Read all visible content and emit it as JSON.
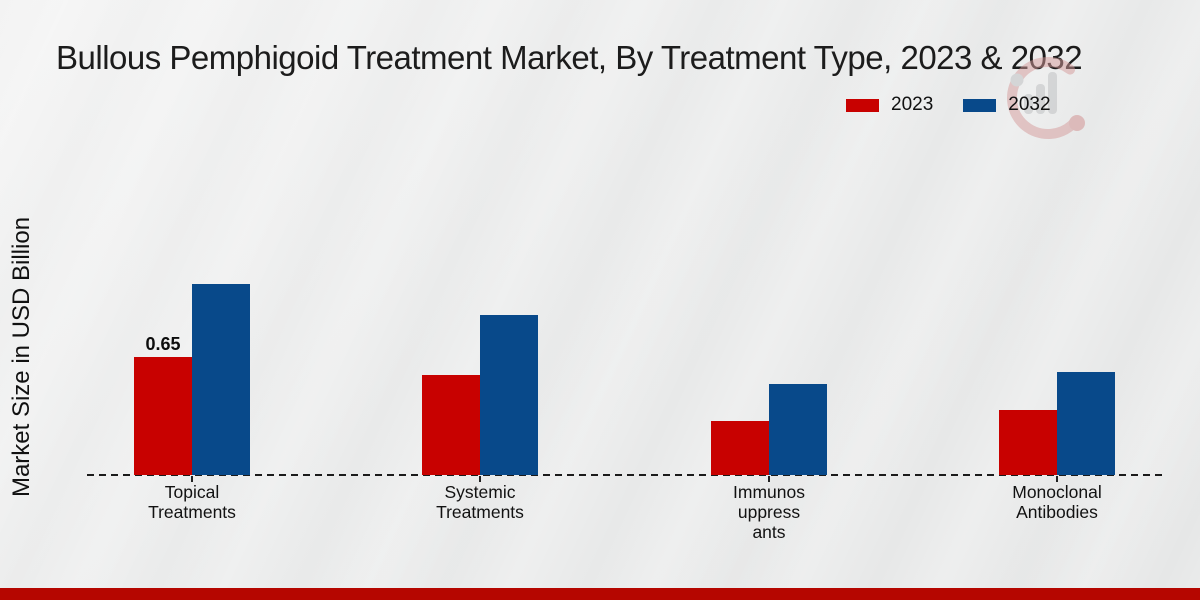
{
  "page": {
    "title": "Bullous Pemphigoid Treatment Market, By Treatment Type, 2023 & 2032"
  },
  "y_axis": {
    "label": "Market Size in USD Billion"
  },
  "legend": {
    "items": [
      {
        "label": "2023",
        "color": "#c80100"
      },
      {
        "label": "2032",
        "color": "#08498a"
      }
    ]
  },
  "chart_data": {
    "type": "bar",
    "title": "Bullous Pemphigoid Treatment Market, By Treatment Type, 2023 & 2032",
    "xlabel": "",
    "ylabel": "Market Size in USD Billion",
    "categories": [
      "Topical Treatments",
      "Systemic Treatments",
      "Immunosuppressants",
      "Monoclonal Antibodies"
    ],
    "category_label_lines": [
      [
        "Topical",
        "Treatments"
      ],
      [
        "Systemic",
        "Treatments"
      ],
      [
        "Immunos",
        "uppress",
        "ants"
      ],
      [
        "Monoclonal",
        "Antibodies"
      ]
    ],
    "series": [
      {
        "name": "2023",
        "color": "#c80100",
        "values": [
          0.65,
          0.55,
          0.3,
          0.36
        ],
        "bar_labels": [
          "0.65",
          "",
          "",
          ""
        ]
      },
      {
        "name": "2032",
        "color": "#08498a",
        "values": [
          1.05,
          0.88,
          0.5,
          0.57
        ],
        "bar_labels": [
          "",
          "",
          "",
          ""
        ]
      }
    ],
    "ylim": [
      0,
      1.2
    ],
    "grid": false,
    "legend_position": "top-right",
    "baseline_style": "dashed",
    "unit": "USD Billion"
  },
  "footer": {
    "bar_color": "#b50600"
  },
  "icons": {
    "watermark": "bar-chart-logo-watermark"
  }
}
